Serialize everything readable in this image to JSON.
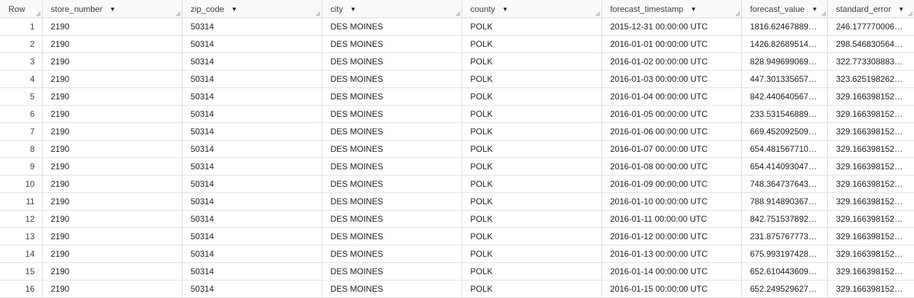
{
  "columns": [
    {
      "label": "Row",
      "sortable": false
    },
    {
      "label": "store_number",
      "sortable": true
    },
    {
      "label": "zip_code",
      "sortable": true
    },
    {
      "label": "city",
      "sortable": true
    },
    {
      "label": "county",
      "sortable": true
    },
    {
      "label": "forecast_timestamp",
      "sortable": true
    },
    {
      "label": "forecast_value",
      "sortable": true
    },
    {
      "label": "standard_error",
      "sortable": true
    }
  ],
  "rows": [
    [
      "1",
      "2190",
      "50314",
      "DES MOINES",
      "POLK",
      "2015-12-31 00:00:00 UTC",
      "1816.624678895…",
      "246.1777700063…"
    ],
    [
      "2",
      "2190",
      "50314",
      "DES MOINES",
      "POLK",
      "2016-01-01 00:00:00 UTC",
      "1426.826895143…",
      "298.5468305640…"
    ],
    [
      "3",
      "2190",
      "50314",
      "DES MOINES",
      "POLK",
      "2016-01-02 00:00:00 UTC",
      "828.9496990690…",
      "322.7733088831…"
    ],
    [
      "4",
      "2190",
      "50314",
      "DES MOINES",
      "POLK",
      "2016-01-03 00:00:00 UTC",
      "447.3013356571…",
      "323.6251982620…"
    ],
    [
      "5",
      "2190",
      "50314",
      "DES MOINES",
      "POLK",
      "2016-01-04 00:00:00 UTC",
      "842.4406405674…",
      "329.1663981526…"
    ],
    [
      "6",
      "2190",
      "50314",
      "DES MOINES",
      "POLK",
      "2016-01-05 00:00:00 UTC",
      "233.5315468894…",
      "329.1663981526…"
    ],
    [
      "7",
      "2190",
      "50314",
      "DES MOINES",
      "POLK",
      "2016-01-06 00:00:00 UTC",
      "669.4520925091…",
      "329.1663981526…"
    ],
    [
      "8",
      "2190",
      "50314",
      "DES MOINES",
      "POLK",
      "2016-01-07 00:00:00 UTC",
      "654.4815677107…",
      "329.1663981526…"
    ],
    [
      "9",
      "2190",
      "50314",
      "DES MOINES",
      "POLK",
      "2016-01-08 00:00:00 UTC",
      "654.4140930470…",
      "329.1663981526…"
    ],
    [
      "10",
      "2190",
      "50314",
      "DES MOINES",
      "POLK",
      "2016-01-09 00:00:00 UTC",
      "748.3647376430…",
      "329.1663981526…"
    ],
    [
      "11",
      "2190",
      "50314",
      "DES MOINES",
      "POLK",
      "2016-01-10 00:00:00 UTC",
      "788.9148903678…",
      "329.1663981526…"
    ],
    [
      "12",
      "2190",
      "50314",
      "DES MOINES",
      "POLK",
      "2016-01-11 00:00:00 UTC",
      "842.7515378923…",
      "329.1663981526…"
    ],
    [
      "13",
      "2190",
      "50314",
      "DES MOINES",
      "POLK",
      "2016-01-12 00:00:00 UTC",
      "231.8757677732…",
      "329.1663981526…"
    ],
    [
      "14",
      "2190",
      "50314",
      "DES MOINES",
      "POLK",
      "2016-01-13 00:00:00 UTC",
      "675.9931974287…",
      "329.1663981526…"
    ],
    [
      "15",
      "2190",
      "50314",
      "DES MOINES",
      "POLK",
      "2016-01-14 00:00:00 UTC",
      "652.6104436093…",
      "329.1663981526…"
    ],
    [
      "16",
      "2190",
      "50314",
      "DES MOINES",
      "POLK",
      "2016-01-15 00:00:00 UTC",
      "652.2495296273…",
      "329.1663981526…"
    ]
  ]
}
